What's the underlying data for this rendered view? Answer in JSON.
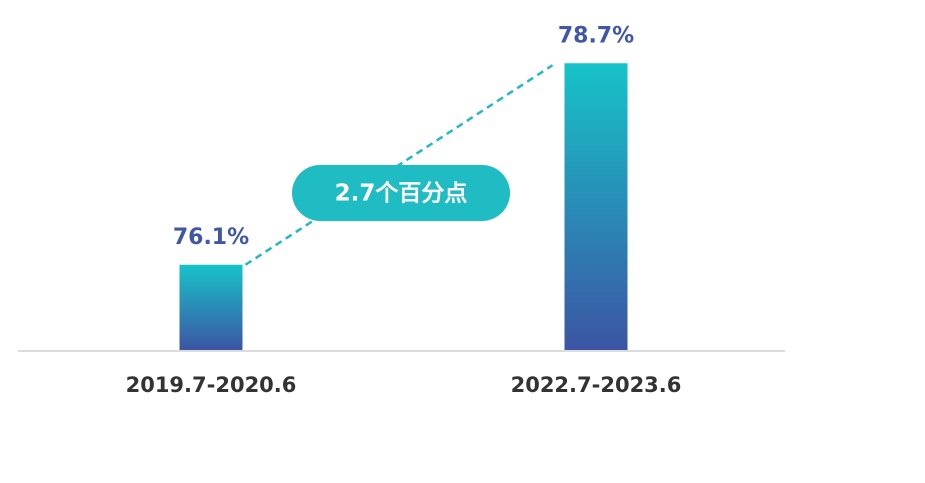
{
  "chart_data": {
    "type": "bar",
    "categories": [
      "2019.7-2020.6",
      "2022.7-2023.6"
    ],
    "values": [
      76.1,
      78.7
    ],
    "value_labels": [
      "76.1%",
      "78.7%"
    ],
    "annotation": "2.7个百分点",
    "color": [
      "#16c3c9",
      "#3c55a4"
    ],
    "label_color": "#3f57a6",
    "ylim": [
      75,
      79
    ]
  }
}
